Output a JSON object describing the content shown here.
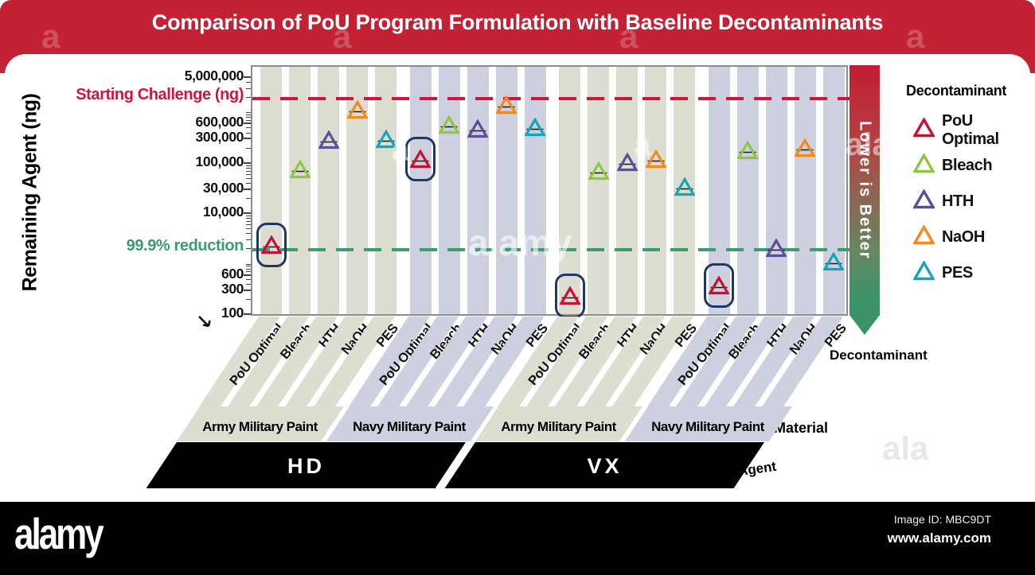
{
  "title": "Comparison of PoU Program Formulation with Baseline Decontaminants",
  "axis_labels": {
    "y": "Remaining Agent (ng)",
    "decontaminant": "Decontaminant",
    "material": "Material",
    "agent": "Agent"
  },
  "legend": {
    "title": "Decontaminant",
    "items": [
      {
        "label": "PoU Optimal",
        "color": "#cb0e33"
      },
      {
        "label": "Bleach",
        "color": "#8dc63f"
      },
      {
        "label": "HTH",
        "color": "#5c4f99"
      },
      {
        "label": "NaOH",
        "color": "#f2891f"
      },
      {
        "label": "PES",
        "color": "#16a5b8"
      }
    ]
  },
  "lower_banner": {
    "label": "Lower is Better"
  },
  "watermark": {
    "brand": "alamy",
    "letter": "a",
    "partial": "ala",
    "image_id": "Image ID: MBC9DT",
    "site": "www.alamy.com"
  },
  "chart_data": {
    "type": "scatter",
    "y_scale": "log",
    "ylim": [
      100,
      5000000
    ],
    "ylabel": "Remaining Agent (ng)",
    "grid": false,
    "yticks": [
      {
        "value": 100,
        "label": "100"
      },
      {
        "value": 300,
        "label": "300"
      },
      {
        "value": 600,
        "label": "600"
      },
      {
        "value": 10000,
        "label": "10,000"
      },
      {
        "value": 30000,
        "label": "30,000"
      },
      {
        "value": 100000,
        "label": "100,000"
      },
      {
        "value": 300000,
        "label": "300,000"
      },
      {
        "value": 600000,
        "label": "600,000"
      },
      {
        "value": 5000000,
        "label": "5,000,000"
      }
    ],
    "reference_lines": [
      {
        "name": "starting-challenge",
        "label": "Starting Challenge (ng)",
        "value": 2000000,
        "color": "#d4123c"
      },
      {
        "name": "reduction-999",
        "label": "99.9% reduction",
        "value": 2000,
        "color": "#3f9b6e"
      }
    ],
    "decontaminants": [
      "PoU Optimal",
      "Bleach",
      "HTH",
      "NaOH",
      "PES"
    ],
    "highlight_decontaminant": "PoU Optimal",
    "marker_colors": {
      "PoU Optimal": "#cb0e33",
      "Bleach": "#8dc63f",
      "HTH": "#5c4f99",
      "NaOH": "#f2891f",
      "PES": "#16a5b8"
    },
    "material_colors": {
      "Army Military Paint": "#deddd2",
      "Navy Military Paint": "#cdd0df"
    },
    "highlight_box_color": "#1d3866",
    "groups": [
      {
        "agent": "HD",
        "material": "Army Military Paint",
        "values": [
          2500,
          80000,
          300000,
          1200000,
          320000
        ]
      },
      {
        "agent": "HD",
        "material": "Navy Military Paint",
        "values": [
          130000,
          600000,
          500000,
          1500000,
          550000
        ]
      },
      {
        "agent": "VX",
        "material": "Army Military Paint",
        "values": [
          250,
          75000,
          110000,
          130000,
          36000
        ]
      },
      {
        "agent": "VX",
        "material": "Navy Military Paint",
        "values": [
          400,
          190000,
          2200,
          210000,
          1200
        ]
      }
    ],
    "agents": [
      {
        "label": "HD",
        "group_span": 2
      },
      {
        "label": "VX",
        "group_span": 2
      }
    ]
  }
}
